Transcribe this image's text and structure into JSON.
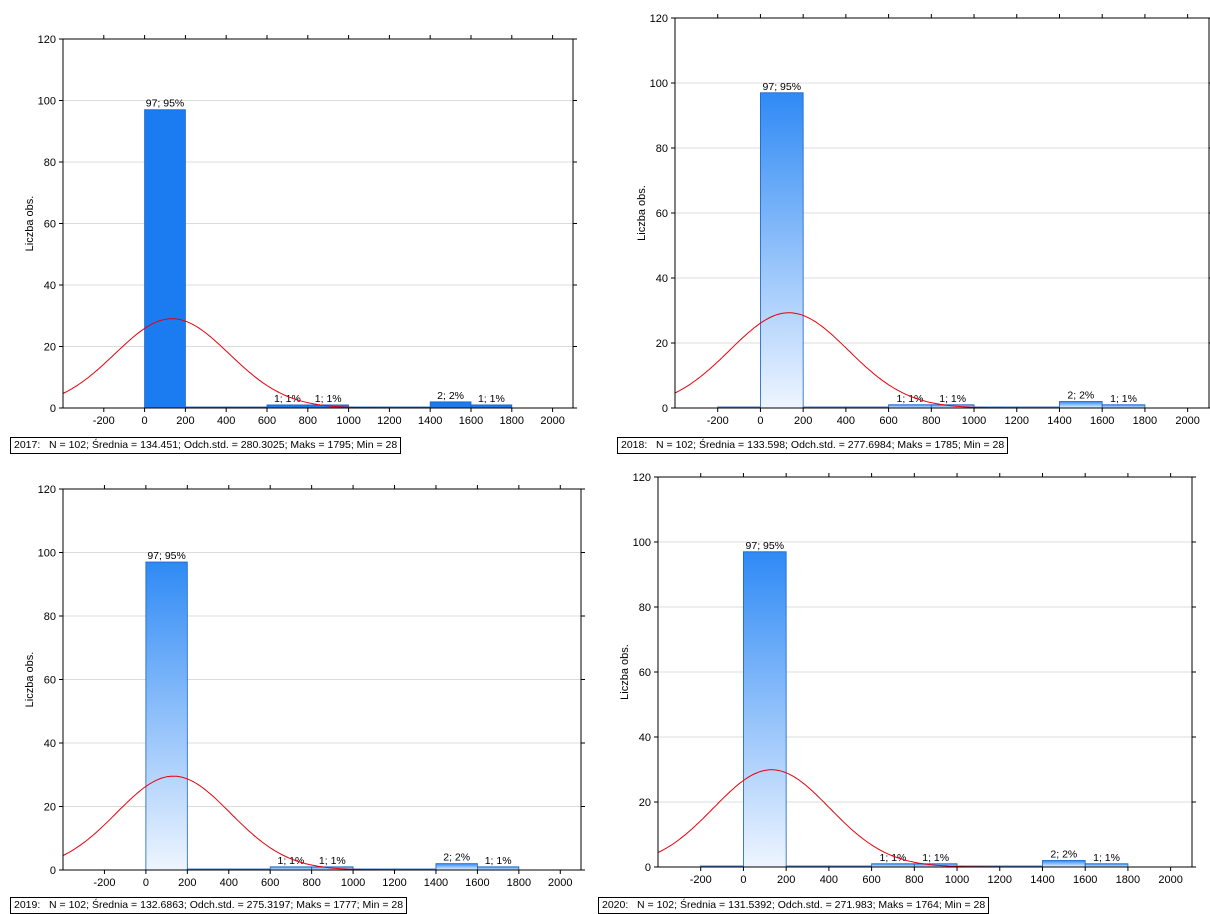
{
  "y_axis_label": "Liczba obs.",
  "stats": [
    {
      "year": "2017:",
      "text": "N = 102; Średnia = 134.451; Odch.std. = 280.3025; Maks = 1795; Min = 28"
    },
    {
      "year": "2018:",
      "text": "N = 102; Średnia = 133.598; Odch.std. = 277.6984; Maks = 1785; Min = 28"
    },
    {
      "year": "2019:",
      "text": "N = 102; Średnia = 132.6863; Odch.std. = 275.3197; Maks = 1777; Min = 28"
    },
    {
      "year": "2020:",
      "text": "N = 102; Średnia = 131.5392; Odch.std. = 271.983; Maks = 1764; Min = 28"
    }
  ],
  "colors": {
    "bar_solid": "#1a7cf0",
    "bar_top": "#2f8af5",
    "bar_bottom": "#eef5ff",
    "bar_stroke": "#1560c8",
    "curve": "#e8000b",
    "grid": "#d0d0d0"
  },
  "chart_data": [
    {
      "type": "bar",
      "title": "",
      "ylabel": "Liczba obs.",
      "xlim": [
        -400,
        2100
      ],
      "ylim": [
        0,
        120
      ],
      "xticks": [
        -200,
        0,
        200,
        400,
        600,
        800,
        1000,
        1200,
        1400,
        1600,
        1800,
        2000
      ],
      "yticks": [
        0,
        20,
        40,
        60,
        80,
        100,
        120
      ],
      "bin_edges": [
        0,
        200,
        400,
        600,
        800,
        1000,
        1200,
        1400,
        1600,
        1800
      ],
      "values": [
        97,
        0,
        0,
        1,
        1,
        0,
        0,
        2,
        1
      ],
      "labels": [
        "97; 95%",
        "",
        "",
        "1; 1%",
        "1; 1%",
        "",
        "",
        "2; 2%",
        "1; 1%"
      ],
      "normal_curve": {
        "mean": 134.451,
        "std": 280.3025,
        "n": 102,
        "bin_width": 200
      },
      "grid": true,
      "fill": "solid"
    },
    {
      "type": "bar",
      "title": "",
      "ylabel": "Liczba obs.",
      "xlim": [
        -400,
        2100
      ],
      "ylim": [
        0,
        120
      ],
      "xticks": [
        -200,
        0,
        200,
        400,
        600,
        800,
        1000,
        1200,
        1400,
        1600,
        1800,
        2000
      ],
      "yticks": [
        0,
        20,
        40,
        60,
        80,
        100,
        120
      ],
      "bin_edges": [
        -200,
        0,
        200,
        400,
        600,
        800,
        1000,
        1200,
        1400,
        1600,
        1800
      ],
      "values": [
        0,
        97,
        0,
        0,
        1,
        1,
        0,
        0,
        2,
        1
      ],
      "labels": [
        "",
        "97; 95%",
        "",
        "",
        "1; 1%",
        "1; 1%",
        "",
        "",
        "2; 2%",
        "1; 1%"
      ],
      "normal_curve": {
        "mean": 133.598,
        "std": 277.6984,
        "n": 102,
        "bin_width": 200
      },
      "grid": true,
      "fill": "gradient"
    },
    {
      "type": "bar",
      "title": "",
      "ylabel": "Liczba obs.",
      "xlim": [
        -400,
        2100
      ],
      "ylim": [
        0,
        120
      ],
      "xticks": [
        -200,
        0,
        200,
        400,
        600,
        800,
        1000,
        1200,
        1400,
        1600,
        1800,
        2000
      ],
      "yticks": [
        0,
        20,
        40,
        60,
        80,
        100,
        120
      ],
      "bin_edges": [
        0,
        200,
        400,
        600,
        800,
        1000,
        1200,
        1400,
        1600,
        1800
      ],
      "values": [
        97,
        0,
        0,
        1,
        1,
        0,
        0,
        2,
        1
      ],
      "labels": [
        "97; 95%",
        "",
        "",
        "1; 1%",
        "1; 1%",
        "",
        "",
        "2; 2%",
        "1; 1%"
      ],
      "normal_curve": {
        "mean": 132.6863,
        "std": 275.3197,
        "n": 102,
        "bin_width": 200
      },
      "grid": true,
      "fill": "gradient"
    },
    {
      "type": "bar",
      "title": "",
      "ylabel": "Liczba obs.",
      "xlim": [
        -400,
        2100
      ],
      "ylim": [
        0,
        120
      ],
      "xticks": [
        -200,
        0,
        200,
        400,
        600,
        800,
        1000,
        1200,
        1400,
        1600,
        1800,
        2000
      ],
      "yticks": [
        0,
        20,
        40,
        60,
        80,
        100,
        120
      ],
      "bin_edges": [
        -200,
        0,
        200,
        400,
        600,
        800,
        1000,
        1200,
        1400,
        1600,
        1800
      ],
      "values": [
        0,
        97,
        0,
        0,
        1,
        1,
        0,
        0,
        2,
        1
      ],
      "labels": [
        "",
        "97; 95%",
        "",
        "",
        "1; 1%",
        "1; 1%",
        "",
        "",
        "2; 2%",
        "1; 1%"
      ],
      "normal_curve": {
        "mean": 131.5392,
        "std": 271.983,
        "n": 102,
        "bin_width": 200
      },
      "grid": true,
      "fill": "gradient"
    }
  ]
}
